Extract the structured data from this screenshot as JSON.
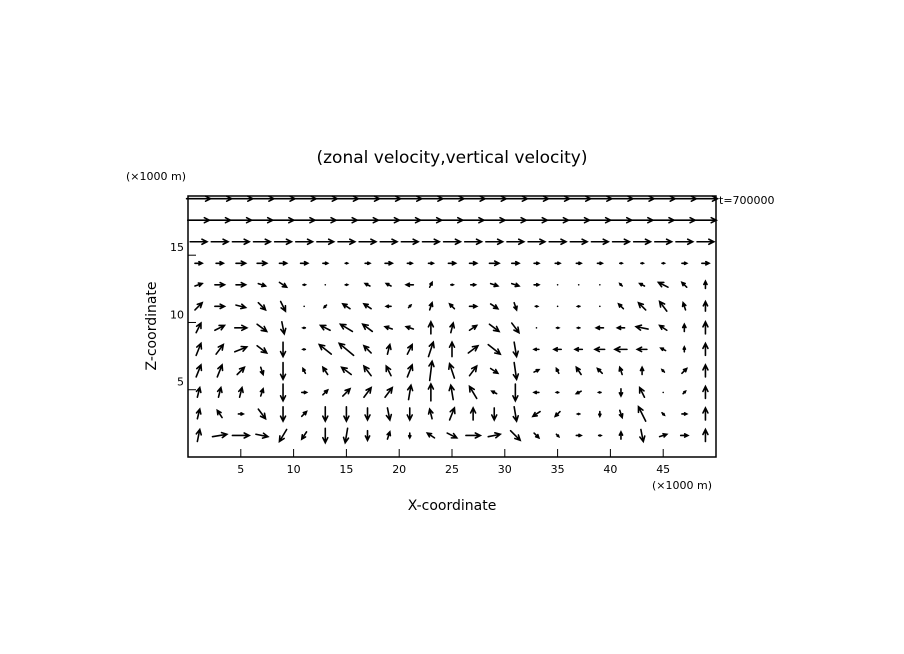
{
  "chart_data": {
    "type": "quiver",
    "title": "(zonal velocity,vertical velocity)",
    "xlabel": "X-coordinate",
    "ylabel": "Z-coordinate",
    "x_unit": "(×1000 m)",
    "y_unit": "(×1000 m)",
    "annotation": "t=700000",
    "xlim": [
      0,
      50
    ],
    "ylim": [
      0,
      19.4
    ],
    "xticks": [
      5,
      10,
      15,
      20,
      25,
      30,
      35,
      40,
      45
    ],
    "yticks": [
      5,
      10,
      15
    ],
    "color": "#000000",
    "x": [
      1,
      3,
      5,
      7,
      9,
      11,
      13,
      15,
      17,
      19,
      21,
      23,
      25,
      27,
      29,
      31,
      33,
      35,
      37,
      39,
      41,
      43,
      45,
      47,
      49
    ],
    "z": [
      1.6,
      3.2,
      4.8,
      6.4,
      8.0,
      9.6,
      11.2,
      12.8,
      14.4,
      16.0,
      17.6,
      19.2
    ],
    "u": [
      [
        0.1,
        0.6,
        0.7,
        0.5,
        -0.3,
        -0.2,
        0,
        -0.1,
        0,
        0.1,
        0,
        -0.3,
        0.4,
        0.6,
        0.5,
        0.4,
        0.2,
        0.1,
        0.2,
        0.1,
        0,
        0.1,
        0.3,
        0.3,
        0
      ],
      [
        0.1,
        -0.2,
        0.2,
        0.3,
        0,
        0.2,
        0,
        0,
        0,
        0.1,
        0,
        -0.1,
        0.2,
        0,
        0,
        0.1,
        -0.3,
        -0.2,
        -0.1,
        0,
        0.1,
        -0.3,
        0.1,
        0.2,
        0
      ],
      [
        0.1,
        0.1,
        0.1,
        0.1,
        0,
        0.2,
        0.2,
        0.3,
        0.3,
        0.3,
        0.1,
        0,
        -0.1,
        -0.3,
        -0.2,
        0,
        -0.2,
        -0.1,
        -0.2,
        -0.1,
        0,
        -0.2,
        0,
        0.1,
        0
      ],
      [
        0.2,
        0.2,
        0.3,
        0.1,
        0,
        -0.1,
        -0.2,
        -0.4,
        -0.3,
        -0.2,
        0.2,
        0.1,
        -0.2,
        0.3,
        0.3,
        0.1,
        0.2,
        -0.1,
        -0.2,
        -0.2,
        -0.1,
        0,
        -0.1,
        0.2,
        0
      ],
      [
        0.2,
        0.3,
        0.5,
        0.4,
        0,
        -0.1,
        -0.5,
        -0.6,
        -0.3,
        0.1,
        0.2,
        0.2,
        0,
        0.4,
        0.5,
        0.1,
        -0.2,
        -0.3,
        -0.3,
        -0.4,
        -0.5,
        -0.4,
        -0.2,
        0,
        0
      ],
      [
        0.2,
        0.4,
        0.5,
        0.4,
        0.1,
        -0.1,
        -0.4,
        -0.5,
        -0.4,
        -0.3,
        -0.3,
        0,
        0.1,
        0.3,
        0.4,
        0.3,
        0,
        0.1,
        -0.1,
        -0.3,
        -0.3,
        -0.5,
        -0.3,
        0,
        0
      ],
      [
        0.3,
        0.4,
        0.4,
        0.3,
        0.2,
        0,
        -0.1,
        -0.3,
        -0.3,
        -0.2,
        0.1,
        0.1,
        -0.2,
        0.3,
        0.3,
        0.1,
        0.1,
        0,
        -0.1,
        0,
        -0.2,
        -0.3,
        -0.3,
        -0.1,
        0
      ],
      [
        0.3,
        0.4,
        0.4,
        0.3,
        0.3,
        0.1,
        0,
        0.1,
        -0.2,
        -0.2,
        -0.3,
        0.1,
        0.1,
        0.2,
        0.3,
        0.3,
        0.2,
        0,
        0,
        0,
        -0.1,
        -0.2,
        -0.4,
        -0.2,
        0
      ],
      [
        0.3,
        0.3,
        0.4,
        0.4,
        0.3,
        0.3,
        0.2,
        0.1,
        0.2,
        0.3,
        0.2,
        0.2,
        0.3,
        0.3,
        0.4,
        0.3,
        0.2,
        0.2,
        0.2,
        0.2,
        0.1,
        0.1,
        0.1,
        0.2,
        0.3
      ],
      [
        0.7,
        0.7,
        0.7,
        0.7,
        0.7,
        0.7,
        0.7,
        0.7,
        0.7,
        0.7,
        0.7,
        0.7,
        0.7,
        0.7,
        0.7,
        0.7,
        0.7,
        0.7,
        0.7,
        0.7,
        0.7,
        0.7,
        0.7,
        0.7,
        0.7
      ],
      [
        0.9,
        0.9,
        0.9,
        0.9,
        0.9,
        0.9,
        0.9,
        0.9,
        0.9,
        0.9,
        0.9,
        0.9,
        0.9,
        0.9,
        0.9,
        0.9,
        0.9,
        0.9,
        0.9,
        0.9,
        0.9,
        0.9,
        0.9,
        0.9,
        0.9
      ],
      [
        1,
        1,
        1,
        1,
        1,
        1,
        1,
        1,
        1,
        1,
        1,
        1,
        1,
        1,
        1,
        1,
        1,
        1,
        1,
        1,
        1,
        1,
        1,
        1,
        1
      ]
    ],
    "w": [
      [
        0.5,
        0.1,
        0,
        -0.1,
        -0.5,
        -0.3,
        -0.6,
        -0.6,
        -0.4,
        0.3,
        -0.2,
        0.2,
        -0.2,
        0,
        0.1,
        -0.4,
        -0.2,
        -0.1,
        0,
        0,
        0.3,
        -0.5,
        0.1,
        0,
        0.5
      ],
      [
        0.4,
        0.3,
        0,
        -0.4,
        -0.6,
        0.2,
        -0.6,
        -0.6,
        -0.5,
        -0.5,
        -0.5,
        0.4,
        0.5,
        0.5,
        -0.5,
        -0.6,
        -0.2,
        -0.2,
        0,
        -0.2,
        -0.3,
        0.6,
        -0.1,
        0,
        0.5
      ],
      [
        0.4,
        0.4,
        0.4,
        0.3,
        -0.7,
        0,
        0.2,
        0.3,
        0.4,
        0.4,
        0.6,
        0.7,
        0.6,
        0.5,
        0.1,
        -0.7,
        0,
        0,
        -0.1,
        0,
        -0.3,
        0.4,
        0,
        0.1,
        0.5
      ],
      [
        0.5,
        0.5,
        0.3,
        -0.3,
        -0.7,
        0.2,
        0.3,
        0.3,
        0.4,
        0.4,
        0.5,
        0.8,
        0.6,
        0.4,
        -0.2,
        -0.7,
        0.1,
        0.2,
        0.3,
        0.2,
        0.3,
        0.3,
        0.1,
        0.2,
        0.5
      ],
      [
        0.5,
        0.4,
        0.2,
        -0.3,
        -0.6,
        0,
        0.4,
        0.5,
        0.3,
        0.4,
        0.4,
        0.6,
        0.6,
        0.3,
        -0.4,
        -0.6,
        0,
        0,
        0,
        0,
        0,
        0,
        0.1,
        0.2,
        0.5
      ],
      [
        0.4,
        0.2,
        0,
        -0.3,
        -0.5,
        0,
        0.2,
        0.3,
        0.3,
        0.1,
        0.1,
        0.5,
        0.4,
        0.2,
        -0.3,
        -0.4,
        0,
        0,
        0,
        0,
        0,
        0.1,
        0.2,
        0.3,
        0.5
      ],
      [
        0.3,
        0,
        -0.1,
        -0.3,
        -0.4,
        0,
        -0.1,
        0.2,
        0.2,
        0,
        0.1,
        0.3,
        0.2,
        0,
        -0.2,
        -0.3,
        0,
        0,
        0,
        0,
        0.2,
        0.3,
        0.4,
        0.3,
        0.4
      ],
      [
        0.1,
        0,
        0,
        -0.1,
        -0.2,
        0,
        0,
        0,
        0.1,
        0.1,
        0,
        0.2,
        0,
        0,
        -0.1,
        -0.1,
        0,
        0,
        0,
        0,
        0.1,
        0.1,
        0.2,
        0.2,
        0.3
      ],
      [
        0,
        0,
        0,
        0,
        0,
        0,
        0,
        0,
        0,
        0,
        0,
        0,
        0,
        0,
        0,
        0,
        0,
        0,
        0,
        0,
        0,
        0,
        0,
        0,
        0
      ],
      [
        0,
        0,
        0,
        0,
        0,
        0,
        0,
        0,
        0,
        0,
        0,
        0,
        0,
        0,
        0,
        0,
        0,
        0,
        0,
        0,
        0,
        0,
        0,
        0,
        0
      ],
      [
        0,
        0,
        0,
        0,
        0,
        0,
        0,
        0,
        0,
        0,
        0,
        0,
        0,
        0,
        0,
        0,
        0,
        0,
        0,
        0,
        0,
        0,
        0,
        0,
        0
      ],
      [
        0,
        0,
        0,
        0,
        0,
        0,
        0,
        0,
        0,
        0,
        0,
        0,
        0,
        0,
        0,
        0,
        0,
        0,
        0,
        0,
        0,
        0,
        0,
        0,
        0
      ]
    ]
  }
}
